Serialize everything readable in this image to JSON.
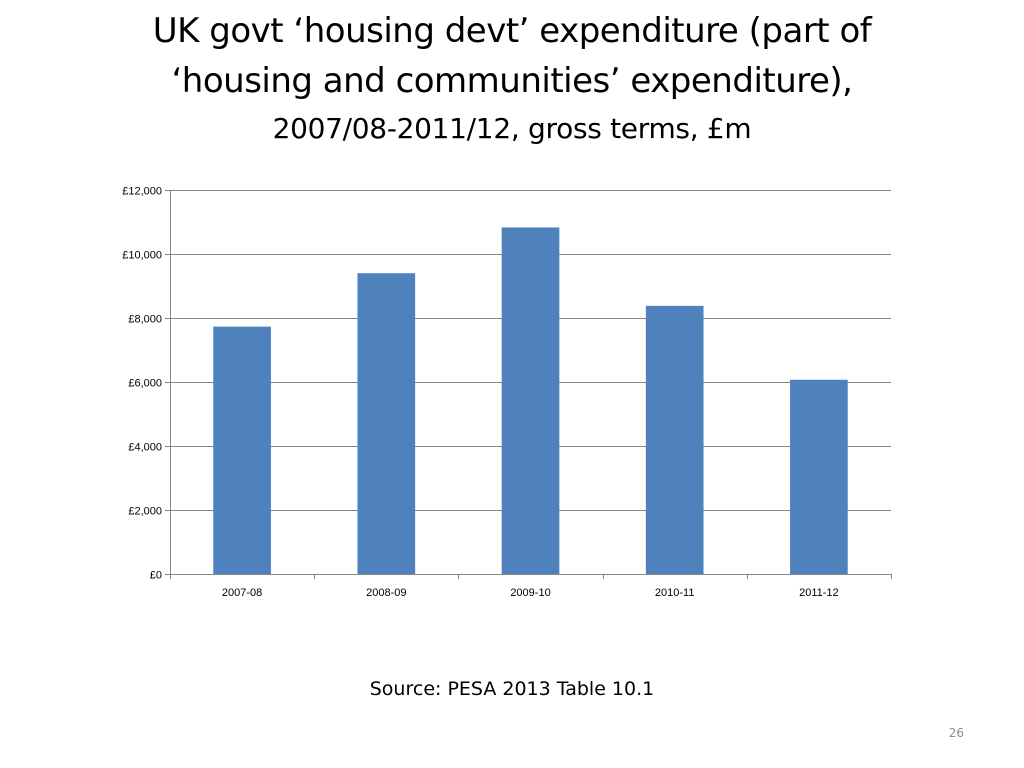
{
  "slide": {
    "title_line1": "UK govt ‘housing devt’ expenditure (part of",
    "title_line2": "‘housing and communities’ expenditure),",
    "title_line3": "2007/08-2011/12, gross terms, £m",
    "source": "Source: PESA 2013 Table 10.1",
    "page_number": "26"
  },
  "chart_data": {
    "type": "bar",
    "categories": [
      "2007-08",
      "2008-09",
      "2009-10",
      "2010-11",
      "2011-12"
    ],
    "values": [
      7730,
      9400,
      10830,
      8380,
      6070
    ],
    "title": "",
    "xlabel": "",
    "ylabel": "",
    "ylim": [
      0,
      12000
    ],
    "yticks": [
      0,
      2000,
      4000,
      6000,
      8000,
      10000,
      12000
    ],
    "ytick_labels": [
      "£0",
      "£2,000",
      "£4,000",
      "£6,000",
      "£8,000",
      "£10,000",
      "£12,000"
    ],
    "grid": true,
    "legend": "none",
    "bar_color": "#4F81BD",
    "gridline_color": "#868686",
    "axis_color": "#868686"
  }
}
